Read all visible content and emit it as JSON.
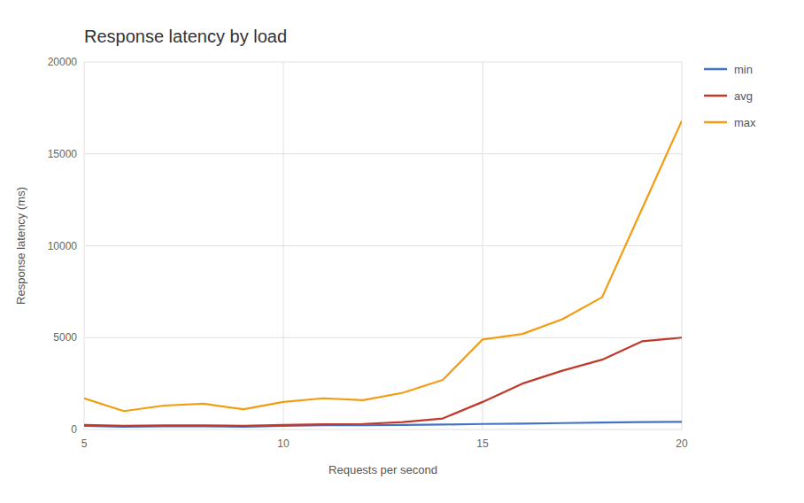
{
  "chart_data": {
    "type": "line",
    "title": "Response latency by load",
    "xlabel": "Requests per second",
    "ylabel": "Response latency (ms)",
    "x": [
      5,
      6,
      7,
      8,
      9,
      10,
      11,
      12,
      13,
      14,
      15,
      16,
      17,
      18,
      19,
      20
    ],
    "series": [
      {
        "name": "min",
        "color": "#4472c4",
        "values": [
          200,
          150,
          170,
          170,
          150,
          200,
          230,
          230,
          250,
          270,
          300,
          320,
          350,
          380,
          400,
          420
        ]
      },
      {
        "name": "avg",
        "color": "#c0392b",
        "values": [
          250,
          200,
          220,
          220,
          200,
          250,
          280,
          300,
          400,
          600,
          1500,
          2500,
          3200,
          3800,
          4800,
          5000
        ]
      },
      {
        "name": "max",
        "color": "#f39c12",
        "values": [
          1700,
          1000,
          1300,
          1400,
          1100,
          1500,
          1700,
          1600,
          2000,
          2700,
          4900,
          5200,
          6000,
          7200,
          12000,
          16800
        ]
      }
    ],
    "xlim": [
      5,
      20
    ],
    "ylim": [
      0,
      20000
    ],
    "xticks": [
      5,
      10,
      15,
      20
    ],
    "yticks": [
      0,
      5000,
      10000,
      15000,
      20000
    ],
    "grid": true,
    "legend": "right"
  }
}
